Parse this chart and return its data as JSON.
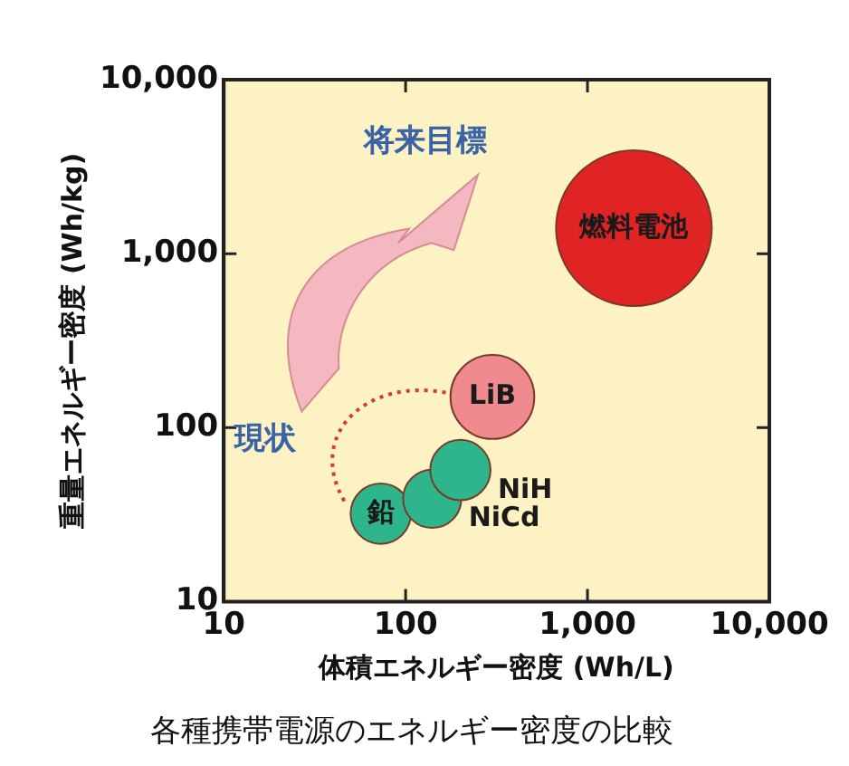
{
  "chart_data": {
    "type": "bubble",
    "title": "各種携帯電源のエネルギー密度の比較",
    "xlabel": "体積エネルギー密度 (Wh/L)",
    "ylabel": "重量エネルギー密度 (Wh/kg)",
    "log": "xy",
    "xlim": [
      10,
      10000
    ],
    "ylim": [
      10,
      10000
    ],
    "xticks": [
      10,
      100,
      {
        "value": 1000,
        "label": "1,000"
      },
      {
        "value": 10000,
        "label": "10,000"
      }
    ],
    "yticks": [
      10,
      100,
      {
        "value": 1000,
        "label": "1,000"
      },
      {
        "value": 10000,
        "label": "10,000"
      }
    ],
    "legend": false,
    "annotations": [
      "将来目標",
      "現状"
    ],
    "series": [
      {
        "name": "燃料電池",
        "color": "#e02424",
        "x": [
          1800
        ],
        "values": [
          1400
        ],
        "sizes": [
          1
        ]
      },
      {
        "name": "LiB",
        "color": "#f08a8f",
        "x": [
          300
        ],
        "values": [
          150
        ],
        "sizes": [
          0.29
        ]
      },
      {
        "name": "NiH",
        "color": "#2fb58c",
        "x": [
          200
        ],
        "values": [
          57
        ],
        "sizes": [
          0.15
        ]
      },
      {
        "name": "NiCd",
        "color": "#2fb58c",
        "x": [
          140
        ],
        "values": [
          39
        ],
        "sizes": [
          0.14
        ]
      },
      {
        "name": "鉛",
        "color": "#2fb58c",
        "x": [
          73
        ],
        "values": [
          32
        ],
        "sizes": [
          0.15
        ]
      }
    ]
  }
}
